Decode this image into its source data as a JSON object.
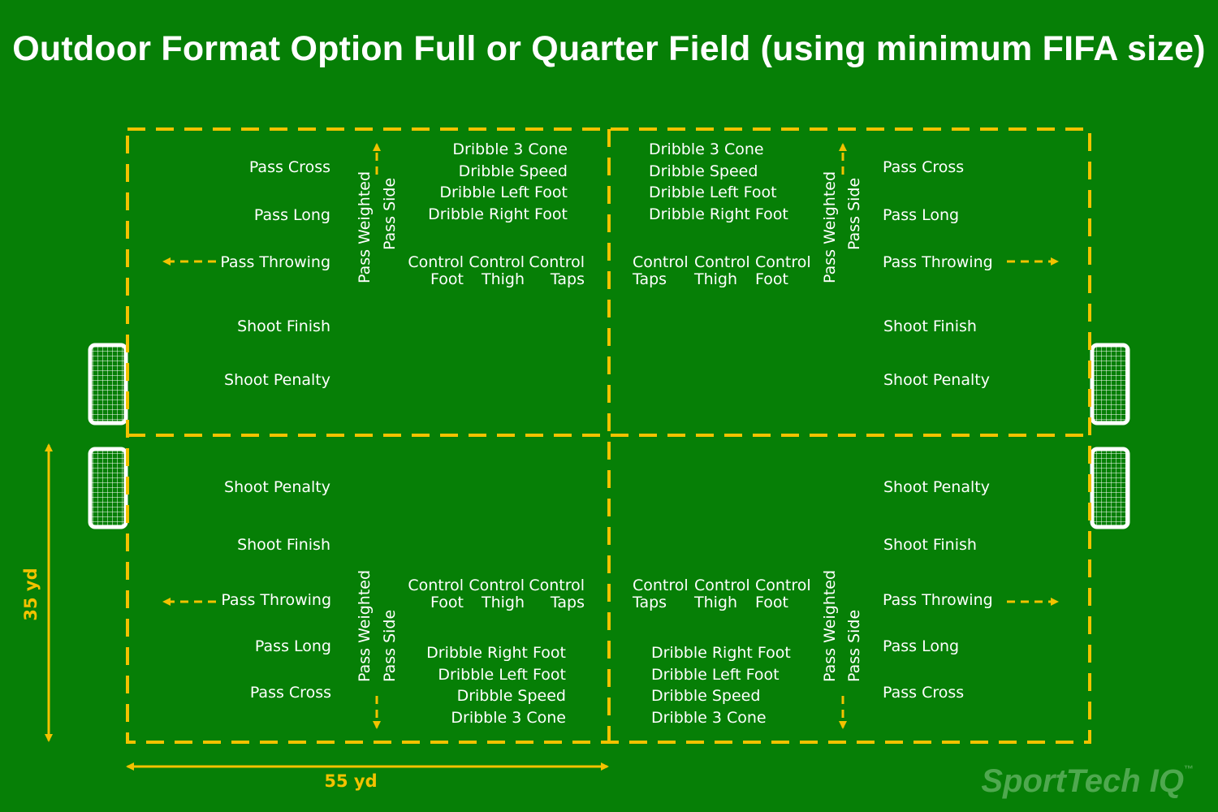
{
  "title": "Outdoor Format Option Full or Quarter Field (using minimum FIFA size)",
  "colors": {
    "field": "#067f06",
    "line": "#f2c200",
    "text": "#ffffff",
    "goal": "#ffffff"
  },
  "dimensions": {
    "width_label": "55 yd",
    "height_label": "35 yd"
  },
  "brand": {
    "name": "SportTech IQ",
    "tm": "™"
  },
  "stations": {
    "pass_cross": "Pass Cross",
    "pass_long": "Pass Long",
    "pass_throwing": "Pass Throwing",
    "shoot_finish": "Shoot Finish",
    "shoot_penalty": "Shoot Penalty",
    "pass_weighted": "Pass Weighted",
    "pass_side": "Pass Side",
    "dribble_3_cone": "Dribble 3 Cone",
    "dribble_speed": "Dribble Speed",
    "dribble_left_foot": "Dribble Left Foot",
    "dribble_right_foot": "Dribble Right Foot",
    "control": "Control",
    "foot": "Foot",
    "thigh": "Thigh",
    "taps": "Taps"
  }
}
